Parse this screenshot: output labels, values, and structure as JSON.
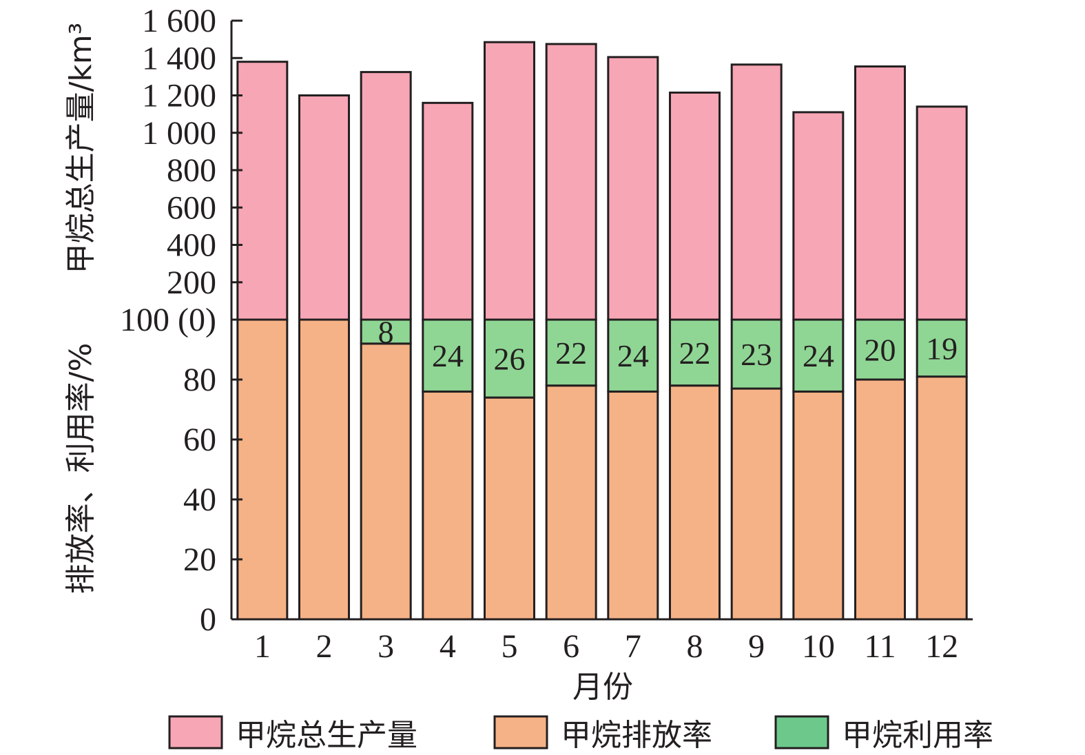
{
  "chart_data": {
    "type": "bar",
    "xlabel": "月份",
    "ylabel_upper": "甲烷总生产量/km³",
    "ylabel_lower": "排放率、利用率/%",
    "categories": [
      "1",
      "2",
      "3",
      "4",
      "5",
      "6",
      "7",
      "8",
      "9",
      "10",
      "11",
      "12"
    ],
    "upper_axis": {
      "ylim": [
        0,
        1600
      ],
      "ticks": [
        {
          "value": 200,
          "label": "200"
        },
        {
          "value": 400,
          "label": "400"
        },
        {
          "value": 600,
          "label": "600"
        },
        {
          "value": 800,
          "label": "800"
        },
        {
          "value": 1000,
          "label": "1 000"
        },
        {
          "value": 1200,
          "label": "1 200"
        },
        {
          "value": 1400,
          "label": "1 400"
        },
        {
          "value": 1600,
          "label": "1 600"
        }
      ]
    },
    "lower_axis": {
      "ylim": [
        0,
        100
      ],
      "ticks": [
        {
          "value": 0,
          "label": "0"
        },
        {
          "value": 20,
          "label": "20"
        },
        {
          "value": 40,
          "label": "40"
        },
        {
          "value": 60,
          "label": "60"
        },
        {
          "value": 80,
          "label": "80"
        },
        {
          "value": 100,
          "label": "100 (0)"
        }
      ]
    },
    "series": [
      {
        "name": "甲烷总生产量",
        "color": "#f7a6b5",
        "axis": "upper",
        "values": [
          1380,
          1200,
          1325,
          1160,
          1485,
          1475,
          1405,
          1215,
          1365,
          1110,
          1355,
          1140
        ]
      },
      {
        "name": "甲烷排放率",
        "color": "#f5b286",
        "axis": "lower",
        "values": [
          100,
          100,
          92,
          76,
          74,
          78,
          76,
          78,
          77,
          76,
          80,
          81
        ]
      },
      {
        "name": "甲烷利用率",
        "color": "#8fd694",
        "axis": "lower",
        "values": [
          0,
          0,
          8,
          24,
          26,
          22,
          24,
          22,
          23,
          24,
          20,
          19
        ]
      }
    ],
    "data_labels": [
      "",
      "",
      "8",
      "24",
      "26",
      "22",
      "24",
      "22",
      "23",
      "24",
      "20",
      "19"
    ],
    "legend": {
      "placement": "bottom",
      "items": [
        {
          "label": "甲烷总生产量",
          "color": "#f7a6b5"
        },
        {
          "label": "甲烷排放率",
          "color": "#f5b286"
        },
        {
          "label": "甲烷利用率",
          "color": "#6dc98b"
        }
      ]
    },
    "grid": false
  }
}
